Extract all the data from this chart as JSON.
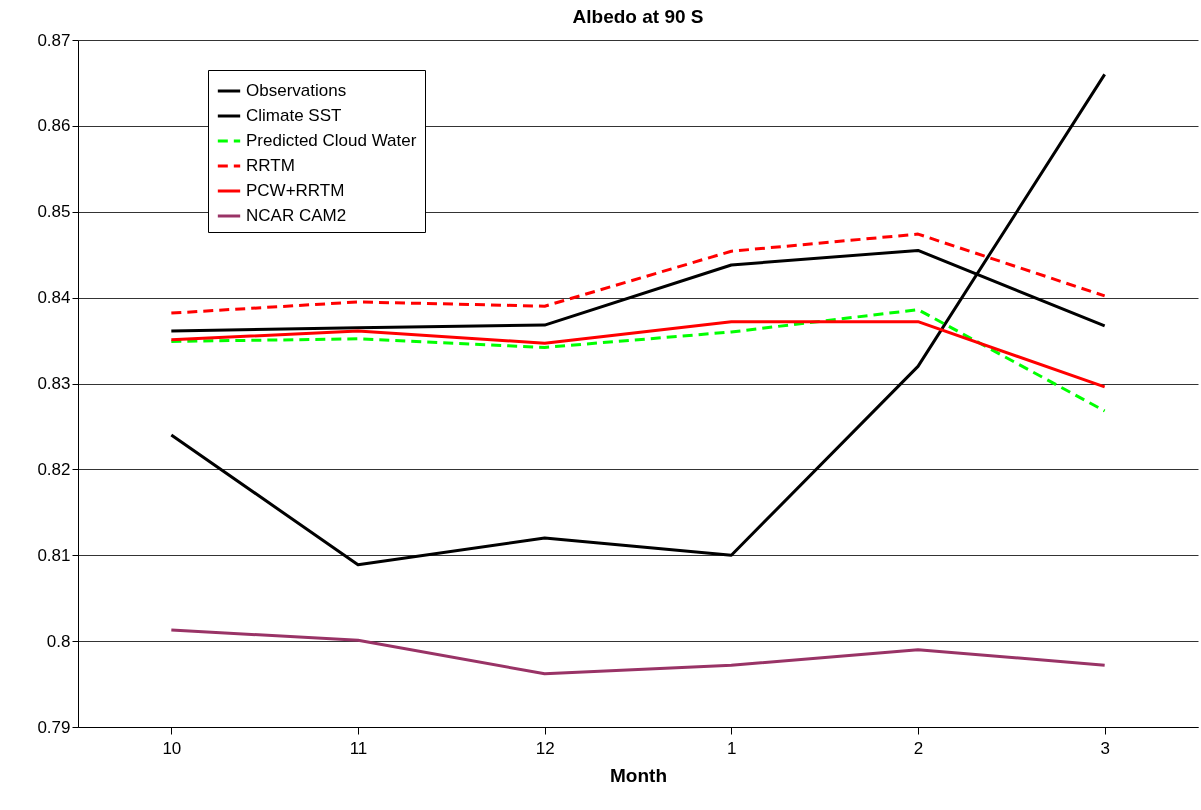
{
  "chart_data": {
    "type": "line",
    "title": "Albedo at 90 S",
    "xlabel": "Month",
    "categories": [
      "10",
      "11",
      "12",
      "1",
      "2",
      "3"
    ],
    "ylim": [
      0.79,
      0.87
    ],
    "yticks": [
      0.79,
      0.8,
      0.81,
      0.82,
      0.83,
      0.84,
      0.85,
      0.86,
      0.87
    ],
    "grid": "y",
    "legend": "top left",
    "marker": "none",
    "series": [
      {
        "name": "Observations",
        "color": "#000000",
        "line_style": "solid",
        "values": [
          0.824,
          0.8089,
          0.812,
          0.81,
          0.832,
          0.866
        ]
      },
      {
        "name": "Climate SST",
        "color": "#000000",
        "line_style": "solid",
        "values": [
          0.8361,
          0.8365,
          0.8368,
          0.8438,
          0.8455,
          0.8367
        ]
      },
      {
        "name": "Predicted Cloud Water",
        "color": "#00ff00",
        "line_style": "dashed",
        "values": [
          0.8349,
          0.8352,
          0.8342,
          0.836,
          0.8386,
          0.8268
        ]
      },
      {
        "name": "RRTM",
        "color": "#ff0000",
        "line_style": "dashed",
        "values": [
          0.8382,
          0.8395,
          0.839,
          0.8454,
          0.8474,
          0.8402
        ]
      },
      {
        "name": "PCW+RRTM",
        "color": "#ff0000",
        "line_style": "solid",
        "values": [
          0.8351,
          0.8361,
          0.8347,
          0.8372,
          0.8372,
          0.8296
        ]
      },
      {
        "name": "NCAR CAM2",
        "color": "#993366",
        "line_style": "solid",
        "values": [
          0.8013,
          0.8001,
          0.7962,
          0.7972,
          0.799,
          0.7972
        ]
      }
    ]
  }
}
